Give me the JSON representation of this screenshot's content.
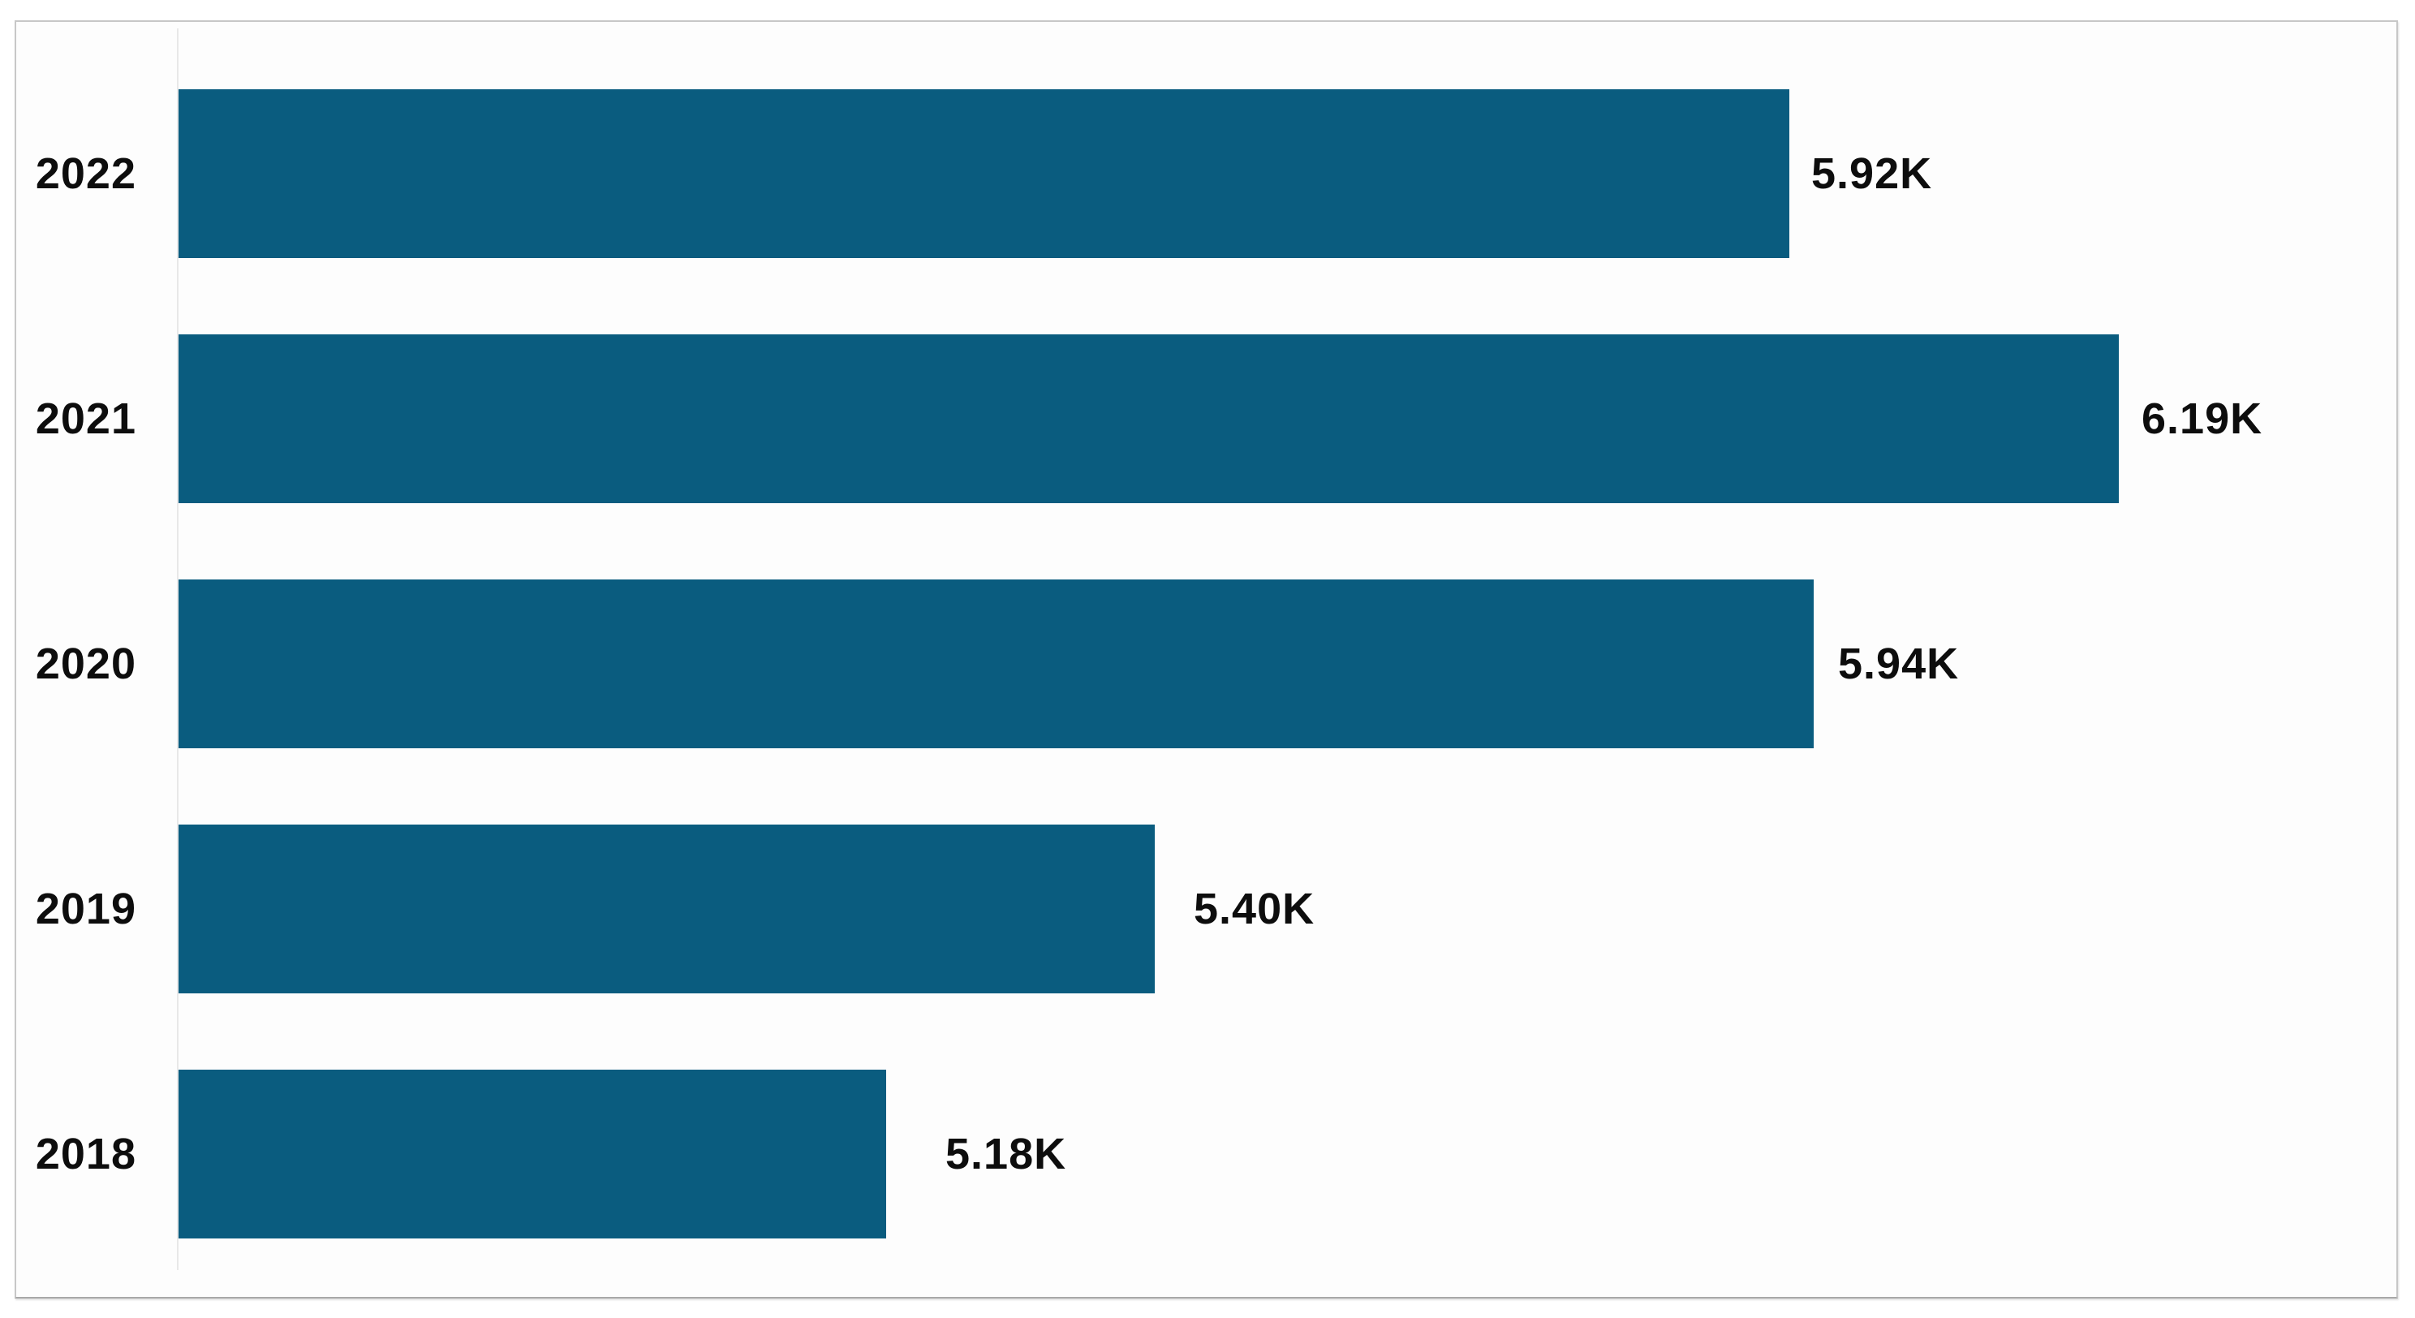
{
  "page": {
    "background": "#ffffff"
  },
  "chart": {
    "frame_background": "#fdfdfd",
    "frame_border_color": "#c7c7c7",
    "axis_line_color": "#e8e8e8"
  },
  "chart_data": {
    "type": "bar",
    "orientation": "horizontal",
    "categories": [
      "2022",
      "2021",
      "2020",
      "2019",
      "2018"
    ],
    "values": [
      5.92,
      6.19,
      5.94,
      5.4,
      5.18
    ],
    "data_labels": [
      "5.92K",
      "6.19K",
      "5.94K",
      "5.40K",
      "5.18K"
    ],
    "unit": "K",
    "bar_color": "#0a5c7f",
    "label_color": "#0d0d0d",
    "xlim": [
      4.6,
      6.42
    ],
    "xlabel": "",
    "ylabel": "",
    "grid": false,
    "legend": false,
    "value_label_position": "outside-end"
  }
}
